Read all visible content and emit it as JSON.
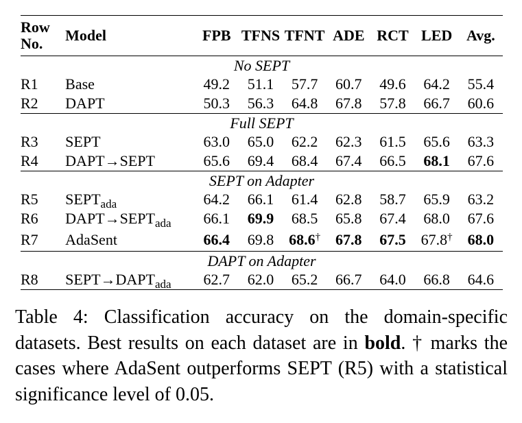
{
  "table": {
    "columns": {
      "row_no_line1": "Row",
      "row_no_line2": "No.",
      "model": "Model",
      "datasets": [
        "FPB",
        "TFNS",
        "TFNT",
        "ADE",
        "RCT",
        "LED",
        "Avg."
      ]
    },
    "sections": [
      {
        "title": "No SEPT",
        "rows": [
          {
            "id": "R1",
            "model": "Base",
            "model_sub": "",
            "values": [
              "49.2",
              "51.1",
              "57.7",
              "60.7",
              "49.6",
              "64.2",
              "55.4"
            ],
            "bold": [
              false,
              false,
              false,
              false,
              false,
              false,
              false
            ],
            "dagger": [
              false,
              false,
              false,
              false,
              false,
              false,
              false
            ]
          },
          {
            "id": "R2",
            "model": "DAPT",
            "model_sub": "",
            "values": [
              "50.3",
              "56.3",
              "64.8",
              "67.8",
              "57.8",
              "66.7",
              "60.6"
            ],
            "bold": [
              false,
              false,
              false,
              false,
              false,
              false,
              false
            ],
            "dagger": [
              false,
              false,
              false,
              false,
              false,
              false,
              false
            ]
          }
        ]
      },
      {
        "title": "Full SEPT",
        "rows": [
          {
            "id": "R3",
            "model": "SEPT",
            "model_sub": "",
            "values": [
              "63.0",
              "65.0",
              "62.2",
              "62.3",
              "61.5",
              "65.6",
              "63.3"
            ],
            "bold": [
              false,
              false,
              false,
              false,
              false,
              false,
              false
            ],
            "dagger": [
              false,
              false,
              false,
              false,
              false,
              false,
              false
            ]
          },
          {
            "id": "R4",
            "model": "DAPT→SEPT",
            "model_sub": "",
            "values": [
              "65.6",
              "69.4",
              "68.4",
              "67.4",
              "66.5",
              "68.1",
              "67.6"
            ],
            "bold": [
              false,
              false,
              false,
              false,
              false,
              true,
              false
            ],
            "dagger": [
              false,
              false,
              false,
              false,
              false,
              false,
              false
            ]
          }
        ]
      },
      {
        "title": "SEPT on Adapter",
        "rows": [
          {
            "id": "R5",
            "model": "SEPT",
            "model_sub": "ada",
            "values": [
              "64.2",
              "66.1",
              "61.4",
              "62.8",
              "58.7",
              "65.9",
              "63.2"
            ],
            "bold": [
              false,
              false,
              false,
              false,
              false,
              false,
              false
            ],
            "dagger": [
              false,
              false,
              false,
              false,
              false,
              false,
              false
            ]
          },
          {
            "id": "R6",
            "model": "DAPT→SEPT",
            "model_sub": "ada",
            "values": [
              "66.1",
              "69.9",
              "68.5",
              "65.8",
              "67.4",
              "68.0",
              "67.6"
            ],
            "bold": [
              false,
              true,
              false,
              false,
              false,
              false,
              false
            ],
            "dagger": [
              false,
              false,
              false,
              false,
              false,
              false,
              false
            ]
          },
          {
            "id": "R7",
            "model": "AdaSent",
            "model_sub": "",
            "values": [
              "66.4",
              "69.8",
              "68.6",
              "67.8",
              "67.5",
              "67.8",
              "68.0"
            ],
            "bold": [
              true,
              false,
              true,
              true,
              true,
              false,
              true
            ],
            "dagger": [
              false,
              false,
              true,
              false,
              false,
              true,
              false
            ]
          }
        ]
      },
      {
        "title": "DAPT on Adapter",
        "rows": [
          {
            "id": "R8",
            "model": "SEPT→DAPT",
            "model_sub": "ada",
            "values": [
              "62.7",
              "62.0",
              "65.2",
              "66.7",
              "64.0",
              "66.8",
              "64.6"
            ],
            "bold": [
              false,
              false,
              false,
              false,
              false,
              false,
              false
            ],
            "dagger": [
              false,
              false,
              false,
              false,
              false,
              false,
              false
            ]
          }
        ]
      }
    ],
    "dagger_symbol": "†"
  },
  "caption": {
    "part1": "Table 4: Classification accuracy on the domain-specific datasets. Best results on each dataset are in ",
    "bold_word": "bold",
    "part2": ". † marks the cases where AdaSent outperforms SEPT (R5) with a statistical significance level of 0.05."
  }
}
